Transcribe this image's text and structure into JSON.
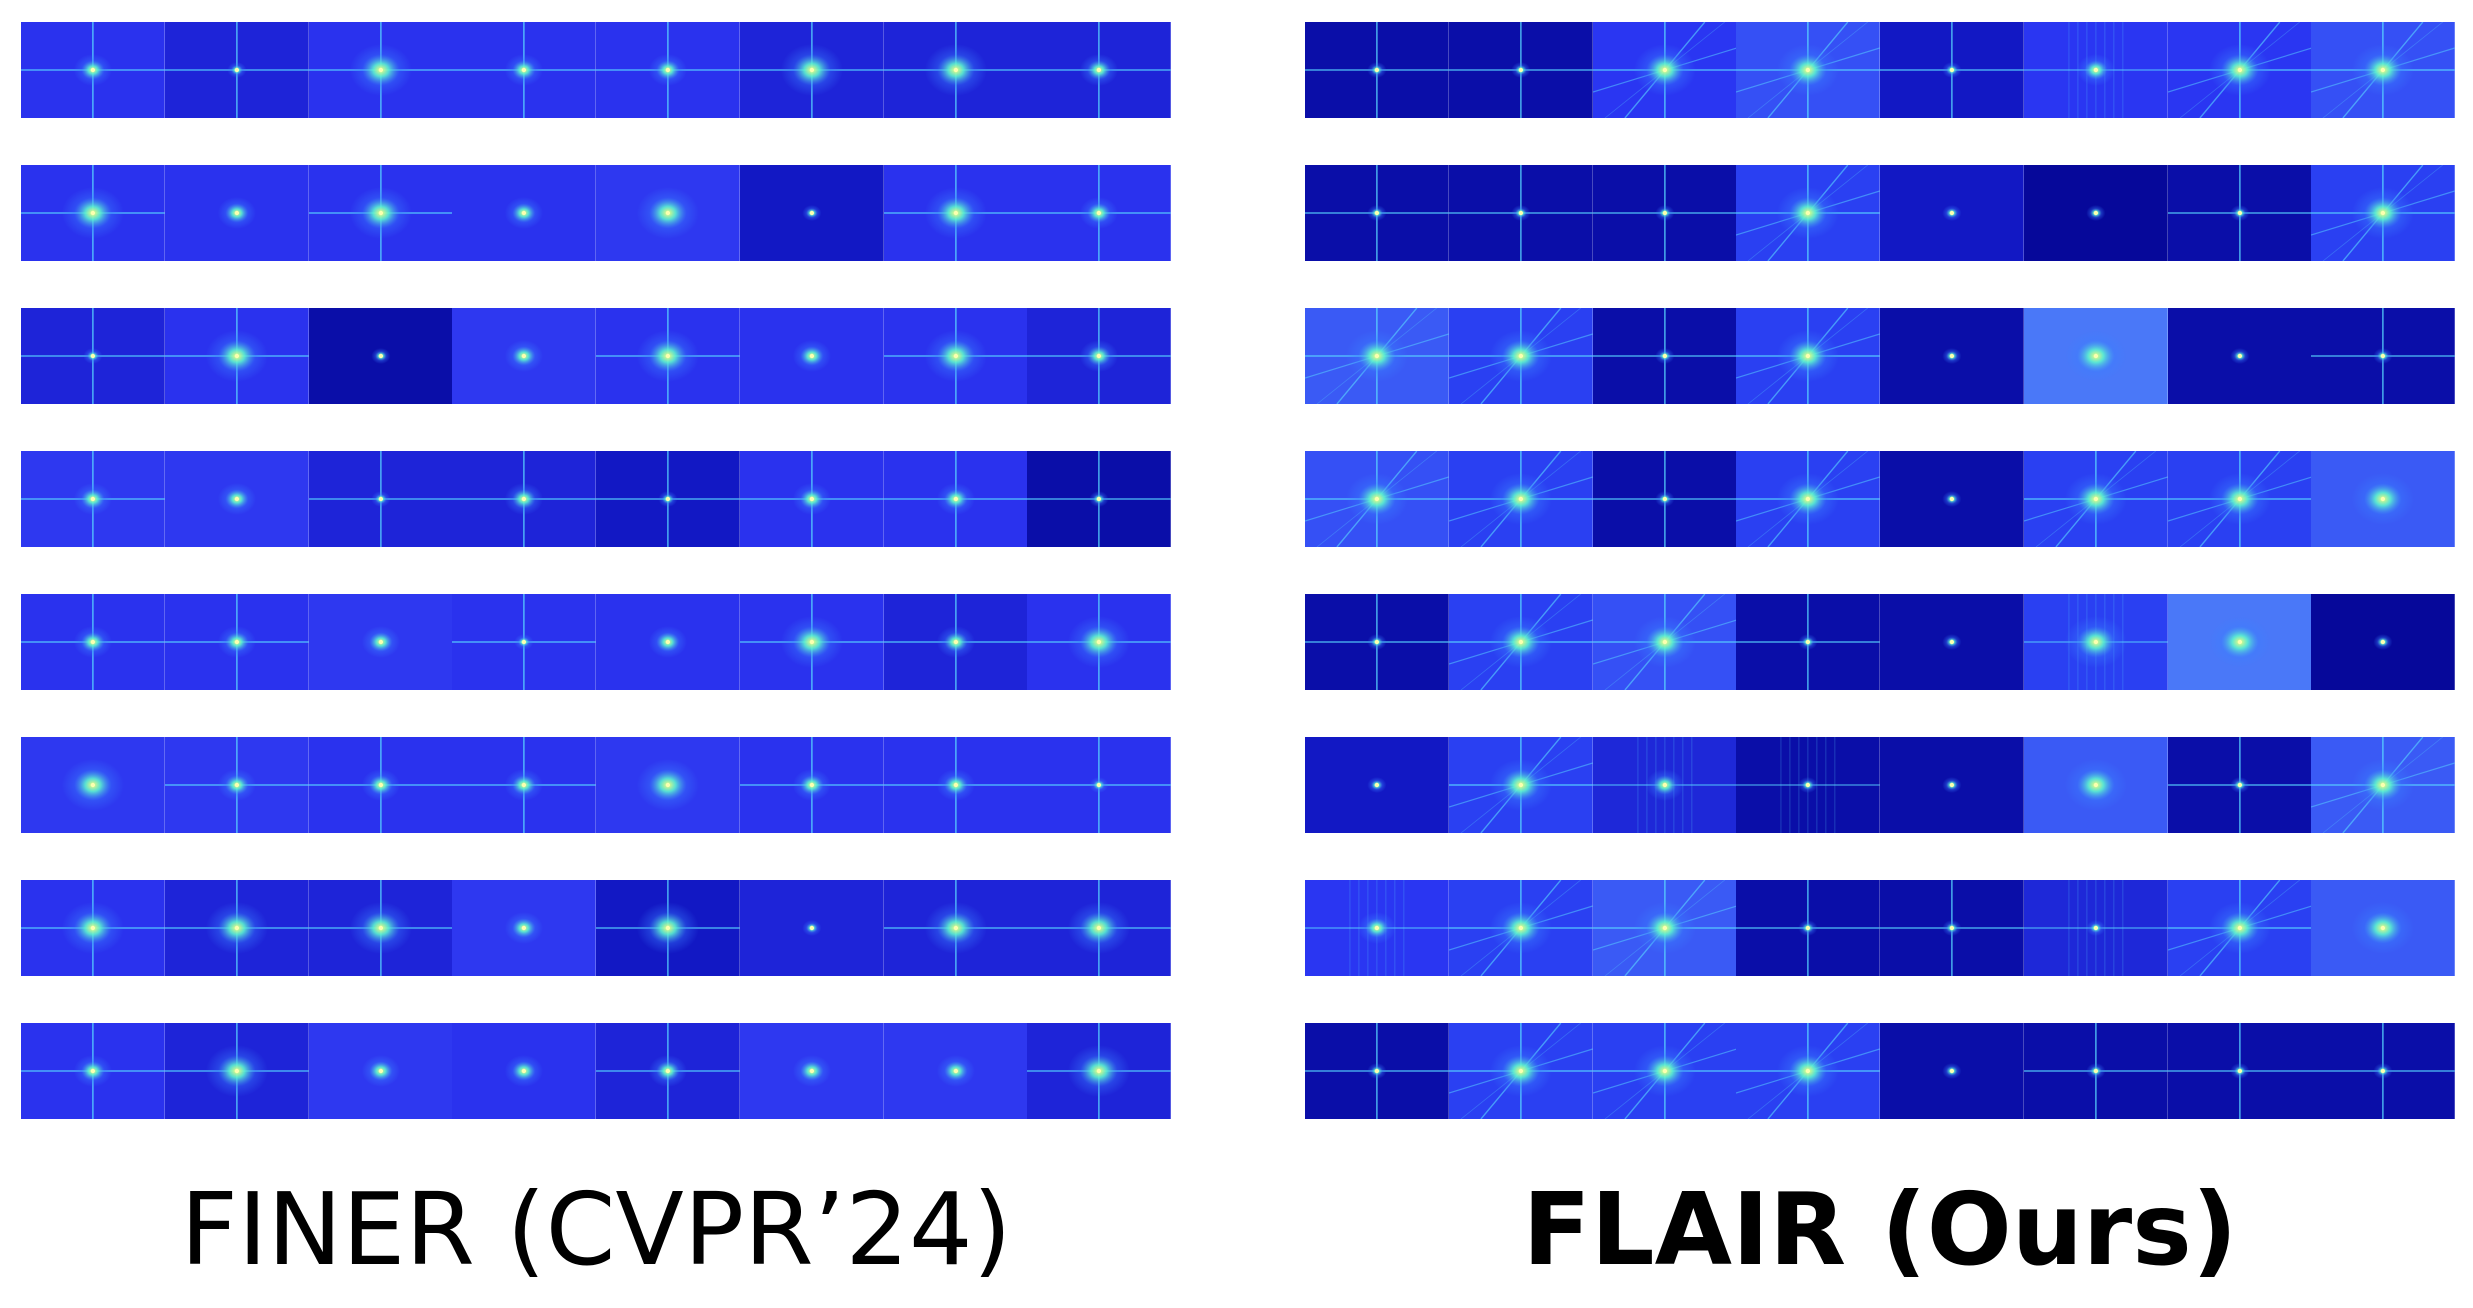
{
  "panels": [
    {
      "id": "finer",
      "caption": "FINER (CVPR’24)",
      "bold": false,
      "rows": [
        [
          {
            "bg": "#2a32ee",
            "star": "cross",
            "glow": "medium"
          },
          {
            "bg": "#1e24d8",
            "star": "cross",
            "glow": "small"
          },
          {
            "bg": "#2a32ee",
            "star": "cross",
            "glow": "large"
          },
          {
            "bg": "#2a32ee",
            "star": "cross",
            "glow": "medium"
          },
          {
            "bg": "#2a32ee",
            "star": "cross",
            "glow": "medium"
          },
          {
            "bg": "#1e24d8",
            "star": "cross",
            "glow": "large"
          },
          {
            "bg": "#1e24d8",
            "star": "cross",
            "glow": "large"
          },
          {
            "bg": "#1e24d8",
            "star": "cross",
            "glow": "medium"
          }
        ],
        [
          {
            "bg": "#2a32ee",
            "star": "cross",
            "glow": "large"
          },
          {
            "bg": "#2a32ee",
            "star": "dot",
            "glow": "medium"
          },
          {
            "bg": "#2a32ee",
            "star": "cross",
            "glow": "large"
          },
          {
            "bg": "#2a32ee",
            "star": "dot",
            "glow": "medium"
          },
          {
            "bg": "#2e38f0",
            "star": "dot",
            "glow": "large"
          },
          {
            "bg": "#1218c4",
            "star": "dot",
            "glow": "small"
          },
          {
            "bg": "#2a32ee",
            "star": "cross",
            "glow": "large"
          },
          {
            "bg": "#2a32ee",
            "star": "cross",
            "glow": "medium"
          }
        ],
        [
          {
            "bg": "#1e24d8",
            "star": "cross",
            "glow": "small"
          },
          {
            "bg": "#2a32ee",
            "star": "cross",
            "glow": "large"
          },
          {
            "bg": "#0a0ea8",
            "star": "dot",
            "glow": "small"
          },
          {
            "bg": "#2e38f0",
            "star": "dot",
            "glow": "medium"
          },
          {
            "bg": "#2a32ee",
            "star": "cross",
            "glow": "large"
          },
          {
            "bg": "#2a32ee",
            "star": "dot",
            "glow": "medium"
          },
          {
            "bg": "#2a32ee",
            "star": "cross",
            "glow": "large"
          },
          {
            "bg": "#1e24d8",
            "star": "cross",
            "glow": "medium"
          }
        ],
        [
          {
            "bg": "#2e38f0",
            "star": "cross",
            "glow": "medium"
          },
          {
            "bg": "#2e38f0",
            "star": "dot",
            "glow": "medium"
          },
          {
            "bg": "#1e24d8",
            "star": "cross",
            "glow": "small"
          },
          {
            "bg": "#1e24d8",
            "star": "cross",
            "glow": "medium"
          },
          {
            "bg": "#1218c4",
            "star": "cross",
            "glow": "small"
          },
          {
            "bg": "#2a32ee",
            "star": "cross",
            "glow": "medium"
          },
          {
            "bg": "#2a32ee",
            "star": "cross",
            "glow": "medium"
          },
          {
            "bg": "#0a0ea8",
            "star": "cross",
            "glow": "small"
          }
        ],
        [
          {
            "bg": "#2a32ee",
            "star": "cross",
            "glow": "medium"
          },
          {
            "bg": "#2a32ee",
            "star": "cross",
            "glow": "medium"
          },
          {
            "bg": "#2e38f0",
            "star": "dot",
            "glow": "medium"
          },
          {
            "bg": "#2a32ee",
            "star": "cross",
            "glow": "small"
          },
          {
            "bg": "#2a32ee",
            "star": "dot",
            "glow": "medium"
          },
          {
            "bg": "#2a32ee",
            "star": "cross",
            "glow": "large"
          },
          {
            "bg": "#1e24d8",
            "star": "cross",
            "glow": "medium"
          },
          {
            "bg": "#2a32ee",
            "star": "cross",
            "glow": "large"
          }
        ],
        [
          {
            "bg": "#2e38f0",
            "star": "dot",
            "glow": "large"
          },
          {
            "bg": "#2e38f0",
            "star": "cross",
            "glow": "medium"
          },
          {
            "bg": "#2a32ee",
            "star": "cross",
            "glow": "medium"
          },
          {
            "bg": "#2a32ee",
            "star": "cross",
            "glow": "medium"
          },
          {
            "bg": "#2e38f0",
            "star": "dot",
            "glow": "large"
          },
          {
            "bg": "#2a32ee",
            "star": "cross",
            "glow": "medium"
          },
          {
            "bg": "#2a32ee",
            "star": "cross",
            "glow": "medium"
          },
          {
            "bg": "#2a32ee",
            "star": "cross",
            "glow": "small"
          }
        ],
        [
          {
            "bg": "#2a32ee",
            "star": "cross",
            "glow": "large"
          },
          {
            "bg": "#1e24d8",
            "star": "cross",
            "glow": "large"
          },
          {
            "bg": "#1e24d8",
            "star": "cross",
            "glow": "large"
          },
          {
            "bg": "#2e38f0",
            "star": "dot",
            "glow": "medium"
          },
          {
            "bg": "#1218c4",
            "star": "cross",
            "glow": "large"
          },
          {
            "bg": "#1e24d8",
            "star": "dot",
            "glow": "small"
          },
          {
            "bg": "#1e24d8",
            "star": "cross",
            "glow": "large"
          },
          {
            "bg": "#1e24d8",
            "star": "cross",
            "glow": "large"
          }
        ],
        [
          {
            "bg": "#2a32ee",
            "star": "cross",
            "glow": "medium"
          },
          {
            "bg": "#1e24d8",
            "star": "cross",
            "glow": "large"
          },
          {
            "bg": "#2e38f0",
            "star": "dot",
            "glow": "medium"
          },
          {
            "bg": "#2a32ee",
            "star": "dot",
            "glow": "medium"
          },
          {
            "bg": "#1e24d8",
            "star": "cross",
            "glow": "medium"
          },
          {
            "bg": "#2e38f0",
            "star": "dot",
            "glow": "medium"
          },
          {
            "bg": "#2e38f0",
            "star": "dot",
            "glow": "medium"
          },
          {
            "bg": "#1e24d8",
            "star": "cross",
            "glow": "large"
          }
        ]
      ]
    },
    {
      "id": "flair",
      "caption": "FLAIR (Ours)",
      "bold": true,
      "rows": [
        [
          {
            "bg": "#0a0ea8",
            "star": "cross",
            "glow": "small"
          },
          {
            "bg": "#0a0ea8",
            "star": "cross",
            "glow": "small"
          },
          {
            "bg": "#2a36f2",
            "star": "diag",
            "glow": "large"
          },
          {
            "bg": "#3550f5",
            "star": "diag",
            "glow": "large"
          },
          {
            "bg": "#1218c4",
            "star": "cross",
            "glow": "small"
          },
          {
            "bg": "#2a36f2",
            "star": "streak",
            "glow": "medium"
          },
          {
            "bg": "#2a36f2",
            "star": "diag",
            "glow": "large"
          },
          {
            "bg": "#3550f5",
            "star": "diag",
            "glow": "large"
          }
        ],
        [
          {
            "bg": "#0a0ea8",
            "star": "cross",
            "glow": "small"
          },
          {
            "bg": "#0a0ea8",
            "star": "cross",
            "glow": "small"
          },
          {
            "bg": "#0a0ea8",
            "star": "cross",
            "glow": "small"
          },
          {
            "bg": "#2a40f2",
            "star": "diag",
            "glow": "large"
          },
          {
            "bg": "#1218c4",
            "star": "dot",
            "glow": "small"
          },
          {
            "bg": "#06089a",
            "star": "dot",
            "glow": "small"
          },
          {
            "bg": "#0a0ea8",
            "star": "cross",
            "glow": "small"
          },
          {
            "bg": "#2a40f2",
            "star": "diag",
            "glow": "large"
          }
        ],
        [
          {
            "bg": "#3a5af5",
            "star": "diag",
            "glow": "large"
          },
          {
            "bg": "#2a40f2",
            "star": "diag",
            "glow": "large"
          },
          {
            "bg": "#0a0ea8",
            "star": "cross",
            "glow": "small"
          },
          {
            "bg": "#2a40f2",
            "star": "diag",
            "glow": "large"
          },
          {
            "bg": "#0a0ea8",
            "star": "dot",
            "glow": "small"
          },
          {
            "bg": "#4a78f8",
            "star": "dot",
            "glow": "large"
          },
          {
            "bg": "#0a0ea8",
            "star": "dot",
            "glow": "small"
          },
          {
            "bg": "#0a0ea8",
            "star": "cross",
            "glow": "small"
          }
        ],
        [
          {
            "bg": "#3550f5",
            "star": "diag",
            "glow": "large"
          },
          {
            "bg": "#2a40f2",
            "star": "diag",
            "glow": "large"
          },
          {
            "bg": "#0a0ea8",
            "star": "cross",
            "glow": "small"
          },
          {
            "bg": "#2a40f2",
            "star": "diag",
            "glow": "large"
          },
          {
            "bg": "#0a0ea8",
            "star": "dot",
            "glow": "small"
          },
          {
            "bg": "#2a40f2",
            "star": "diag",
            "glow": "large"
          },
          {
            "bg": "#2a40f2",
            "star": "diag",
            "glow": "large"
          },
          {
            "bg": "#3a5af5",
            "star": "dot",
            "glow": "large"
          }
        ],
        [
          {
            "bg": "#0a0ea8",
            "star": "cross",
            "glow": "small"
          },
          {
            "bg": "#2a40f2",
            "star": "diag",
            "glow": "large"
          },
          {
            "bg": "#3550f5",
            "star": "diag",
            "glow": "large"
          },
          {
            "bg": "#0a0ea8",
            "star": "cross",
            "glow": "small"
          },
          {
            "bg": "#0a0ea8",
            "star": "dot",
            "glow": "small"
          },
          {
            "bg": "#2a40f2",
            "star": "streak",
            "glow": "large"
          },
          {
            "bg": "#4a78f8",
            "star": "dot",
            "glow": "large"
          },
          {
            "bg": "#06089a",
            "star": "dot",
            "glow": "small"
          }
        ],
        [
          {
            "bg": "#1218c4",
            "star": "dot",
            "glow": "small"
          },
          {
            "bg": "#2a40f2",
            "star": "diag",
            "glow": "large"
          },
          {
            "bg": "#1e28d8",
            "star": "streak",
            "glow": "medium"
          },
          {
            "bg": "#0a0ea8",
            "star": "streak",
            "glow": "small"
          },
          {
            "bg": "#0a0ea8",
            "star": "dot",
            "glow": "small"
          },
          {
            "bg": "#3a5af5",
            "star": "dot",
            "glow": "large"
          },
          {
            "bg": "#0a0ea8",
            "star": "cross",
            "glow": "small"
          },
          {
            "bg": "#3a5af5",
            "star": "diag",
            "glow": "large"
          }
        ],
        [
          {
            "bg": "#2a36f2",
            "star": "streak",
            "glow": "medium"
          },
          {
            "bg": "#2a40f2",
            "star": "diag",
            "glow": "large"
          },
          {
            "bg": "#3a5af5",
            "star": "diag",
            "glow": "large"
          },
          {
            "bg": "#0a0ea8",
            "star": "cross",
            "glow": "small"
          },
          {
            "bg": "#0a0ea8",
            "star": "cross",
            "glow": "small"
          },
          {
            "bg": "#1e28d8",
            "star": "streak",
            "glow": "small"
          },
          {
            "bg": "#2a40f2",
            "star": "diag",
            "glow": "large"
          },
          {
            "bg": "#3a5af5",
            "star": "dot",
            "glow": "large"
          }
        ],
        [
          {
            "bg": "#0a0ea8",
            "star": "cross",
            "glow": "small"
          },
          {
            "bg": "#2a40f2",
            "star": "diag",
            "glow": "large"
          },
          {
            "bg": "#2a40f2",
            "star": "diag",
            "glow": "large"
          },
          {
            "bg": "#2a40f2",
            "star": "diag",
            "glow": "large"
          },
          {
            "bg": "#0a0ea8",
            "star": "dot",
            "glow": "small"
          },
          {
            "bg": "#0a0ea8",
            "star": "cross",
            "glow": "small"
          },
          {
            "bg": "#0a0ea8",
            "star": "cross",
            "glow": "small"
          },
          {
            "bg": "#0a0ea8",
            "star": "cross",
            "glow": "small"
          }
        ]
      ]
    }
  ]
}
